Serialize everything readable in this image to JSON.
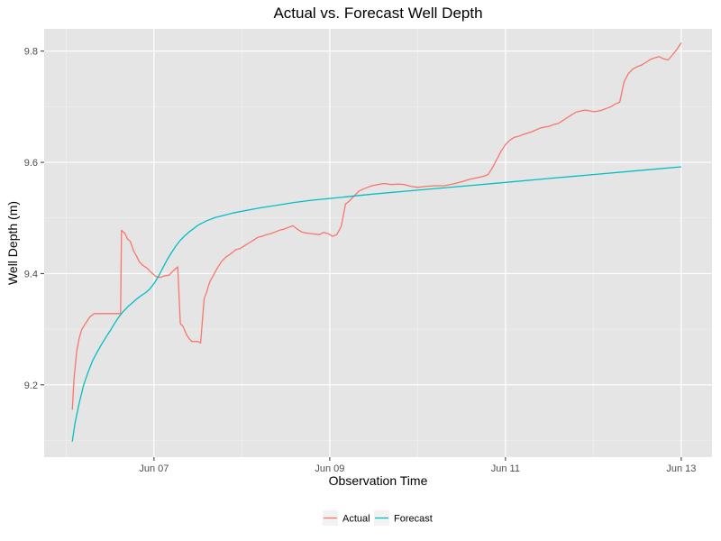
{
  "chart_data": {
    "type": "line",
    "title": "Actual vs. Forecast Well Depth",
    "xlabel": "Observation Time",
    "ylabel": "Well Depth (m)",
    "x_ticks": [
      "Jun 07",
      "Jun 09",
      "Jun 11",
      "Jun 13"
    ],
    "x_tick_values": [
      7,
      9,
      11,
      13
    ],
    "y_ticks": [
      "9.2",
      "9.4",
      "9.6",
      "9.8"
    ],
    "y_tick_values": [
      9.2,
      9.4,
      9.6,
      9.8
    ],
    "xlim": [
      5.75,
      13.35
    ],
    "ylim": [
      9.07,
      9.84
    ],
    "grid": true,
    "legend_position": "bottom",
    "series": [
      {
        "name": "Actual",
        "color": "#F8766D",
        "x": [
          6.07,
          6.09,
          6.12,
          6.15,
          6.18,
          6.22,
          6.27,
          6.32,
          6.37,
          6.42,
          6.52,
          6.62,
          6.63,
          6.67,
          6.7,
          6.73,
          6.77,
          6.8,
          6.83,
          6.87,
          6.92,
          6.97,
          7.02,
          7.07,
          7.12,
          7.17,
          7.22,
          7.27,
          7.3,
          7.33,
          7.37,
          7.4,
          7.43,
          7.47,
          7.5,
          7.53,
          7.57,
          7.6,
          7.62,
          7.64,
          7.68,
          7.72,
          7.77,
          7.82,
          7.87,
          7.93,
          7.98,
          8.03,
          8.08,
          8.13,
          8.18,
          8.23,
          8.28,
          8.33,
          8.38,
          8.43,
          8.48,
          8.53,
          8.58,
          8.63,
          8.68,
          8.73,
          8.78,
          8.83,
          8.88,
          8.93,
          8.98,
          9.03,
          9.08,
          9.13,
          9.18,
          9.22,
          9.25,
          9.28,
          9.33,
          9.38,
          9.43,
          9.48,
          9.55,
          9.62,
          9.7,
          9.78,
          9.85,
          9.92,
          10.0,
          10.1,
          10.2,
          10.3,
          10.4,
          10.5,
          10.6,
          10.7,
          10.75,
          10.8,
          10.85,
          10.9,
          10.95,
          11.0,
          11.05,
          11.1,
          11.15,
          11.2,
          11.3,
          11.4,
          11.5,
          11.55,
          11.6,
          11.65,
          11.7,
          11.75,
          11.8,
          11.85,
          11.9,
          11.95,
          12.0,
          12.05,
          12.1,
          12.15,
          12.2,
          12.25,
          12.3,
          12.35,
          12.4,
          12.45,
          12.5,
          12.55,
          12.6,
          12.65,
          12.7,
          12.75,
          12.8,
          12.85,
          12.9,
          12.95,
          13.0
        ],
        "y": [
          9.155,
          9.21,
          9.26,
          9.285,
          9.3,
          9.31,
          9.322,
          9.328,
          9.328,
          9.328,
          9.328,
          9.328,
          9.478,
          9.472,
          9.462,
          9.458,
          9.44,
          9.432,
          9.422,
          9.415,
          9.41,
          9.402,
          9.395,
          9.393,
          9.396,
          9.397,
          9.405,
          9.412,
          9.31,
          9.305,
          9.29,
          9.283,
          9.278,
          9.278,
          9.278,
          9.275,
          9.355,
          9.367,
          9.378,
          9.387,
          9.398,
          9.41,
          9.422,
          9.43,
          9.435,
          9.443,
          9.445,
          9.45,
          9.455,
          9.46,
          9.465,
          9.467,
          9.47,
          9.472,
          9.475,
          9.478,
          9.48,
          9.483,
          9.486,
          9.48,
          9.475,
          9.473,
          9.472,
          9.471,
          9.47,
          9.474,
          9.472,
          9.467,
          9.47,
          9.485,
          9.525,
          9.53,
          9.535,
          9.54,
          9.548,
          9.552,
          9.555,
          9.558,
          9.56,
          9.562,
          9.56,
          9.561,
          9.56,
          9.557,
          9.555,
          9.557,
          9.558,
          9.558,
          9.561,
          9.565,
          9.57,
          9.573,
          9.575,
          9.578,
          9.59,
          9.605,
          9.62,
          9.632,
          9.64,
          9.645,
          9.647,
          9.65,
          9.655,
          9.662,
          9.665,
          9.668,
          9.67,
          9.675,
          9.68,
          9.685,
          9.69,
          9.692,
          9.694,
          9.693,
          9.691,
          9.692,
          9.694,
          9.697,
          9.7,
          9.705,
          9.708,
          9.745,
          9.76,
          9.768,
          9.772,
          9.775,
          9.78,
          9.785,
          9.788,
          9.79,
          9.786,
          9.784,
          9.793,
          9.803,
          9.815
        ]
      },
      {
        "name": "Forecast",
        "color": "#00BFC4",
        "x": [
          6.07,
          6.1,
          6.15,
          6.2,
          6.25,
          6.3,
          6.35,
          6.4,
          6.45,
          6.5,
          6.55,
          6.6,
          6.65,
          6.7,
          6.75,
          6.8,
          6.85,
          6.9,
          6.95,
          7.0,
          7.05,
          7.1,
          7.15,
          7.2,
          7.25,
          7.3,
          7.35,
          7.4,
          7.45,
          7.5,
          7.6,
          7.7,
          7.8,
          7.9,
          8.0,
          8.2,
          8.4,
          8.6,
          8.8,
          9.0,
          9.5,
          10.0,
          10.5,
          11.0,
          11.5,
          12.0,
          12.5,
          13.0
        ],
        "y": [
          9.098,
          9.13,
          9.168,
          9.2,
          9.223,
          9.243,
          9.258,
          9.272,
          9.285,
          9.297,
          9.31,
          9.322,
          9.332,
          9.34,
          9.347,
          9.354,
          9.36,
          9.365,
          9.372,
          9.382,
          9.395,
          9.41,
          9.425,
          9.438,
          9.45,
          9.46,
          9.468,
          9.475,
          9.481,
          9.487,
          9.495,
          9.501,
          9.505,
          9.509,
          9.512,
          9.518,
          9.523,
          9.528,
          9.532,
          9.535,
          9.543,
          9.55,
          9.557,
          9.564,
          9.571,
          9.578,
          9.585,
          9.592
        ]
      }
    ]
  }
}
